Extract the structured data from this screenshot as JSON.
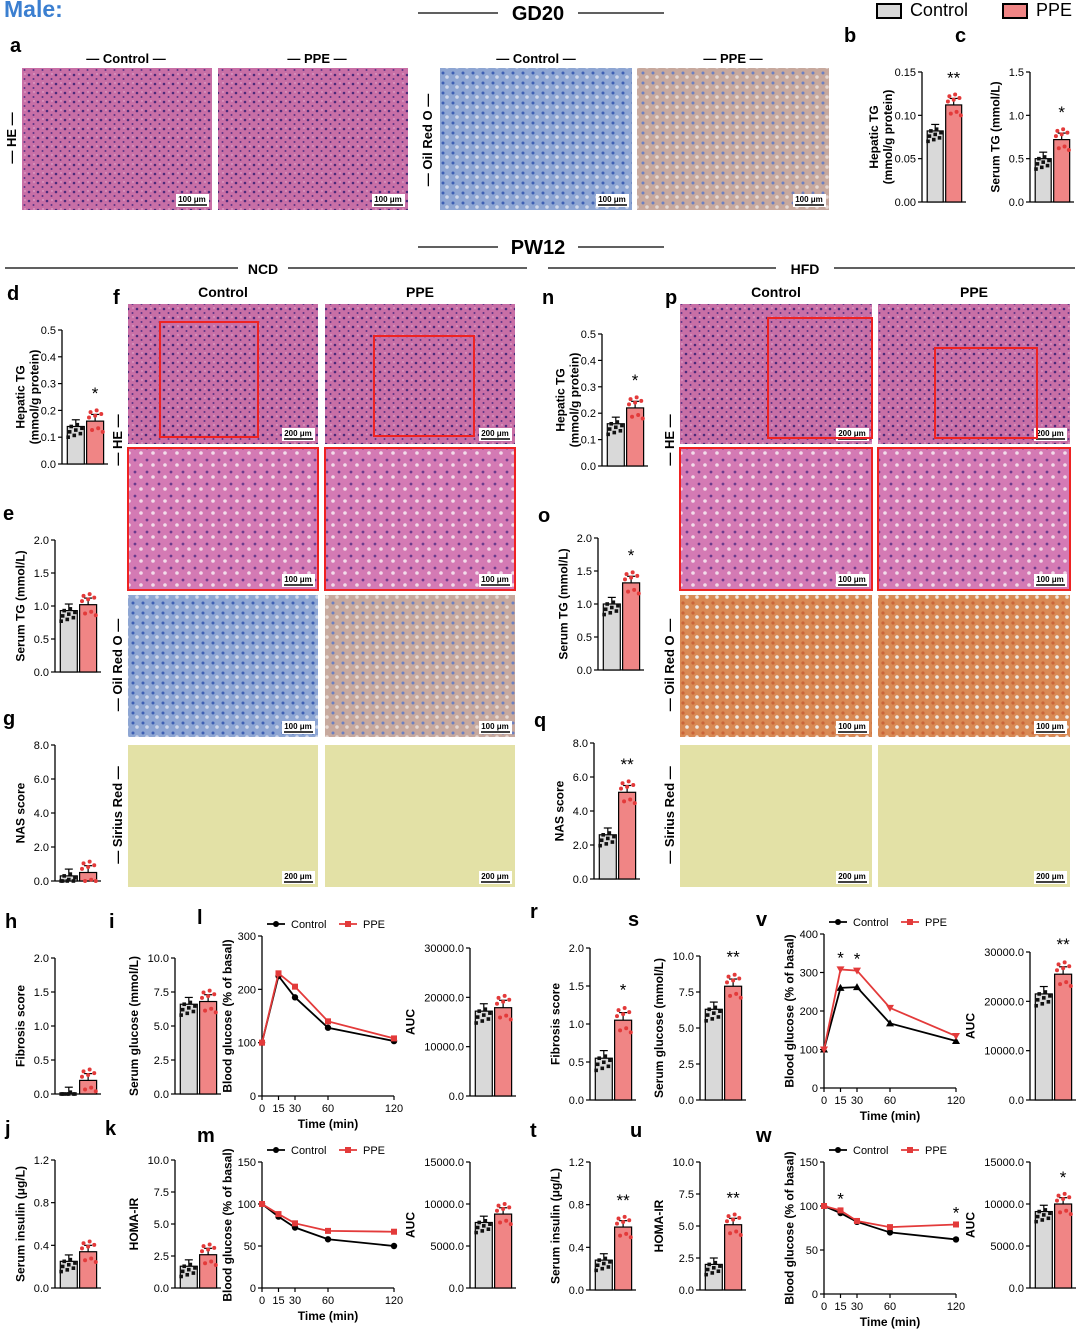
{
  "header": {
    "sex_label": "Male:",
    "gd_label": "GD20",
    "pw_label": "PW12",
    "ncd_label": "NCD",
    "hfd_label": "HFD",
    "legend": [
      {
        "name": "Control",
        "color": "#d9d9d9"
      },
      {
        "name": "PPE",
        "color": "#f08585"
      }
    ]
  },
  "colors": {
    "control_bar": "#d9d9d9",
    "ppe_bar": "#f08585",
    "ppe_dot": "#e33a3a",
    "control_line": "#000000",
    "ppe_line": "#e33a3a"
  },
  "micrographs": {
    "a": {
      "letter": "a",
      "row_labels": [
        "HE",
        "Oil Red O"
      ],
      "col_labels": [
        "Control",
        "PPE",
        "Control",
        "PPE"
      ],
      "scale": "100 μm"
    },
    "f": {
      "letter": "f",
      "row_labels": [
        "HE",
        "Oil Red O",
        "Sirius Red"
      ],
      "col_labels": [
        "Control",
        "PPE"
      ],
      "scales": [
        "200 μm",
        "100 μm",
        "100 μm",
        "200 μm"
      ]
    },
    "p": {
      "letter": "p",
      "row_labels": [
        "HE",
        "Oil Red O",
        "Sirius Red"
      ],
      "col_labels": [
        "Control",
        "PPE"
      ],
      "scales": [
        "200 μm",
        "100 μm",
        "100 μm",
        "200 μm"
      ]
    }
  },
  "chart_data": [
    {
      "id": "b",
      "letter": "b",
      "type": "bar",
      "ylabel": "Hepatic TG\n(mmol/g protein)",
      "ylim": [
        0,
        0.15
      ],
      "yticks": [
        "0.00",
        "0.05",
        "0.10",
        "0.15"
      ],
      "categories": [
        "Control",
        "PPE"
      ],
      "values": [
        0.082,
        0.112
      ],
      "sig": "**"
    },
    {
      "id": "c",
      "letter": "c",
      "type": "bar",
      "ylabel": "Serum TG (mmol/L)",
      "ylim": [
        0,
        1.5
      ],
      "yticks": [
        "0.0",
        "0.5",
        "1.0",
        "1.5"
      ],
      "categories": [
        "Control",
        "PPE"
      ],
      "values": [
        0.5,
        0.72
      ],
      "sig": "*"
    },
    {
      "id": "d",
      "letter": "d",
      "type": "bar",
      "ylabel": "Hepatic TG\n(mmol/g protein)",
      "ylim": [
        0,
        0.5
      ],
      "yticks": [
        "0.0",
        "0.1",
        "0.2",
        "0.3",
        "0.4",
        "0.5"
      ],
      "categories": [
        "Control",
        "PPE"
      ],
      "values": [
        0.14,
        0.16
      ],
      "sig": "*"
    },
    {
      "id": "e",
      "letter": "e",
      "type": "bar",
      "ylabel": "Serum TG (mmol/L)",
      "ylim": [
        0,
        2.0
      ],
      "yticks": [
        "0.0",
        "0.5",
        "1.0",
        "1.5",
        "2.0"
      ],
      "categories": [
        "Control",
        "PPE"
      ],
      "values": [
        0.93,
        1.02
      ],
      "sig": ""
    },
    {
      "id": "g",
      "letter": "g",
      "type": "bar",
      "ylabel": "NAS score",
      "ylim": [
        0,
        8.0
      ],
      "yticks": [
        "0.0",
        "2.0",
        "4.0",
        "6.0",
        "8.0"
      ],
      "categories": [
        "Control",
        "PPE"
      ],
      "values": [
        0.3,
        0.5
      ],
      "sig": ""
    },
    {
      "id": "h",
      "letter": "h",
      "type": "bar",
      "ylabel": "Fibrosis score",
      "ylim": [
        0,
        2.0
      ],
      "yticks": [
        "0.0",
        "0.5",
        "1.0",
        "1.5",
        "2.0"
      ],
      "categories": [
        "Control",
        "PPE"
      ],
      "values": [
        0.0,
        0.2
      ],
      "sig": ""
    },
    {
      "id": "i",
      "letter": "i",
      "type": "bar",
      "ylabel": "Serum glucose (mmol/L)",
      "ylim": [
        0,
        10.0
      ],
      "yticks": [
        "0.0",
        "2.5",
        "5.0",
        "7.5",
        "10.0"
      ],
      "categories": [
        "Control",
        "PPE"
      ],
      "values": [
        6.6,
        6.8
      ],
      "sig": ""
    },
    {
      "id": "l",
      "letter": "l",
      "type": "line",
      "ylabel": "Blood glucose (% of basal)",
      "xlabel": "Time (min)",
      "xlim": [
        0,
        120
      ],
      "ylim": [
        0,
        300
      ],
      "xticks": [
        0,
        15,
        30,
        60,
        120
      ],
      "yticks": [
        0,
        100,
        200,
        300
      ],
      "x": [
        0,
        15,
        30,
        60,
        120
      ],
      "series": [
        {
          "name": "Control",
          "values": [
            100,
            225,
            185,
            128,
            103
          ]
        },
        {
          "name": "PPE",
          "values": [
            100,
            230,
            205,
            140,
            108
          ]
        }
      ],
      "sig": []
    },
    {
      "id": "l_auc",
      "letter": "",
      "type": "bar",
      "ylabel": "AUC",
      "ylim": [
        0,
        30000
      ],
      "yticks": [
        "0.0",
        "10000.0",
        "20000.0",
        "30000.0"
      ],
      "categories": [
        "Control",
        "PPE"
      ],
      "values": [
        17200,
        17900
      ],
      "sig": ""
    },
    {
      "id": "j",
      "letter": "j",
      "type": "bar",
      "ylabel": "Serum insulin (μg/L)",
      "ylim": [
        0,
        1.2
      ],
      "yticks": [
        "0.0",
        "0.4",
        "0.8",
        "1.2"
      ],
      "categories": [
        "Control",
        "PPE"
      ],
      "values": [
        0.25,
        0.34
      ],
      "sig": ""
    },
    {
      "id": "k",
      "letter": "k",
      "type": "bar",
      "ylabel": "HOMA-IR",
      "ylim": [
        0,
        10.0
      ],
      "yticks": [
        "0.0",
        "2.5",
        "5.0",
        "7.5",
        "10.0"
      ],
      "categories": [
        "Control",
        "PPE"
      ],
      "values": [
        1.7,
        2.6
      ],
      "sig": ""
    },
    {
      "id": "m",
      "letter": "m",
      "type": "line",
      "ylabel": "Blood glucose (% of basal)",
      "xlabel": "Time (min)",
      "xlim": [
        0,
        120
      ],
      "ylim": [
        0,
        150
      ],
      "xticks": [
        0,
        15,
        30,
        60,
        120
      ],
      "yticks": [
        0,
        50,
        100,
        150
      ],
      "x": [
        0,
        15,
        30,
        60,
        120
      ],
      "series": [
        {
          "name": "Control",
          "values": [
            100,
            85,
            72,
            58,
            50
          ]
        },
        {
          "name": "PPE",
          "values": [
            100,
            88,
            77,
            68,
            67
          ]
        }
      ],
      "sig": []
    },
    {
      "id": "m_auc",
      "letter": "",
      "type": "bar",
      "ylabel": "AUC",
      "ylim": [
        0,
        15000
      ],
      "yticks": [
        "0.0",
        "5000.0",
        "10000.0",
        "15000.0"
      ],
      "categories": [
        "Control",
        "PPE"
      ],
      "values": [
        7800,
        8800
      ],
      "sig": ""
    },
    {
      "id": "n",
      "letter": "n",
      "type": "bar",
      "ylabel": "Hepatic TG\n(mmol/g protein)",
      "ylim": [
        0,
        0.5
      ],
      "yticks": [
        "0.0",
        "0.1",
        "0.2",
        "0.3",
        "0.4",
        "0.5"
      ],
      "categories": [
        "Control",
        "PPE"
      ],
      "values": [
        0.16,
        0.22
      ],
      "sig": "*"
    },
    {
      "id": "o",
      "letter": "o",
      "type": "bar",
      "ylabel": "Serum TG (mmol/L)",
      "ylim": [
        0,
        2.0
      ],
      "yticks": [
        "0.0",
        "0.5",
        "1.0",
        "1.5",
        "2.0"
      ],
      "categories": [
        "Control",
        "PPE"
      ],
      "values": [
        1.0,
        1.32
      ],
      "sig": "*"
    },
    {
      "id": "q",
      "letter": "q",
      "type": "bar",
      "ylabel": "NAS score",
      "ylim": [
        0,
        8.0
      ],
      "yticks": [
        "0.0",
        "2.0",
        "4.0",
        "6.0",
        "8.0"
      ],
      "categories": [
        "Control",
        "PPE"
      ],
      "values": [
        2.6,
        5.1
      ],
      "sig": "**"
    },
    {
      "id": "r",
      "letter": "r",
      "type": "bar",
      "ylabel": "Fibrosis score",
      "ylim": [
        0,
        2.0
      ],
      "yticks": [
        "0.0",
        "0.5",
        "1.0",
        "1.5",
        "2.0"
      ],
      "categories": [
        "Control",
        "PPE"
      ],
      "values": [
        0.55,
        1.05
      ],
      "sig": "*"
    },
    {
      "id": "s",
      "letter": "s",
      "type": "bar",
      "ylabel": "Serum glucose (mmol/L)",
      "ylim": [
        0,
        10.0
      ],
      "yticks": [
        "0.0",
        "2.5",
        "5.0",
        "7.5",
        "10.0"
      ],
      "categories": [
        "Control",
        "PPE"
      ],
      "values": [
        6.3,
        7.9
      ],
      "sig": "**"
    },
    {
      "id": "v",
      "letter": "v",
      "type": "line",
      "ylabel": "Blood glucose (% of basal)",
      "xlabel": "Time (min)",
      "xlim": [
        0,
        120
      ],
      "ylim": [
        0,
        400
      ],
      "xticks": [
        0,
        15,
        30,
        60,
        120
      ],
      "yticks": [
        0,
        100,
        200,
        300,
        400
      ],
      "x": [
        0,
        15,
        30,
        60,
        120
      ],
      "series": [
        {
          "name": "Control",
          "values": [
            100,
            260,
            262,
            168,
            122
          ]
        },
        {
          "name": "PPE",
          "values": [
            100,
            308,
            305,
            208,
            135
          ]
        }
      ],
      "sig": [
        {
          "x": 15,
          "text": "*"
        },
        {
          "x": 30,
          "text": "*"
        }
      ]
    },
    {
      "id": "v_auc",
      "letter": "",
      "type": "bar",
      "ylabel": "AUC",
      "ylim": [
        0,
        30000
      ],
      "yticks": [
        "0.0",
        "10000.0",
        "20000.0",
        "30000.0"
      ],
      "categories": [
        "Control",
        "PPE"
      ],
      "values": [
        21500,
        25500
      ],
      "sig": "**"
    },
    {
      "id": "t",
      "letter": "t",
      "type": "bar",
      "ylabel": "Serum insulin (μg/L)",
      "ylim": [
        0,
        1.2
      ],
      "yticks": [
        "0.0",
        "0.4",
        "0.8",
        "1.2"
      ],
      "categories": [
        "Control",
        "PPE"
      ],
      "values": [
        0.28,
        0.59
      ],
      "sig": "**"
    },
    {
      "id": "u",
      "letter": "u",
      "type": "bar",
      "ylabel": "HOMA-IR",
      "ylim": [
        0,
        10.0
      ],
      "yticks": [
        "0.0",
        "2.5",
        "5.0",
        "7.5",
        "10.0"
      ],
      "categories": [
        "Control",
        "PPE"
      ],
      "values": [
        2.0,
        5.1
      ],
      "sig": "**"
    },
    {
      "id": "w",
      "letter": "w",
      "type": "line",
      "ylabel": "Blood glucose (% of basal)",
      "xlabel": "Time (min)",
      "xlim": [
        0,
        120
      ],
      "ylim": [
        0,
        150
      ],
      "xticks": [
        0,
        15,
        30,
        60,
        120
      ],
      "yticks": [
        0,
        50,
        100,
        150
      ],
      "x": [
        0,
        15,
        30,
        60,
        120
      ],
      "series": [
        {
          "name": "Control",
          "values": [
            100,
            92,
            82,
            70,
            62
          ]
        },
        {
          "name": "PPE",
          "values": [
            100,
            95,
            83,
            76,
            79
          ]
        }
      ],
      "sig": [
        {
          "x": 15,
          "text": "*"
        },
        {
          "x": 120,
          "text": "*"
        }
      ]
    },
    {
      "id": "w_auc",
      "letter": "",
      "type": "bar",
      "ylabel": "AUC",
      "ylim": [
        0,
        15000
      ],
      "yticks": [
        "0.0",
        "5000.0",
        "10000.0",
        "15000.0"
      ],
      "categories": [
        "Control",
        "PPE"
      ],
      "values": [
        9100,
        10000
      ],
      "sig": "*"
    }
  ]
}
